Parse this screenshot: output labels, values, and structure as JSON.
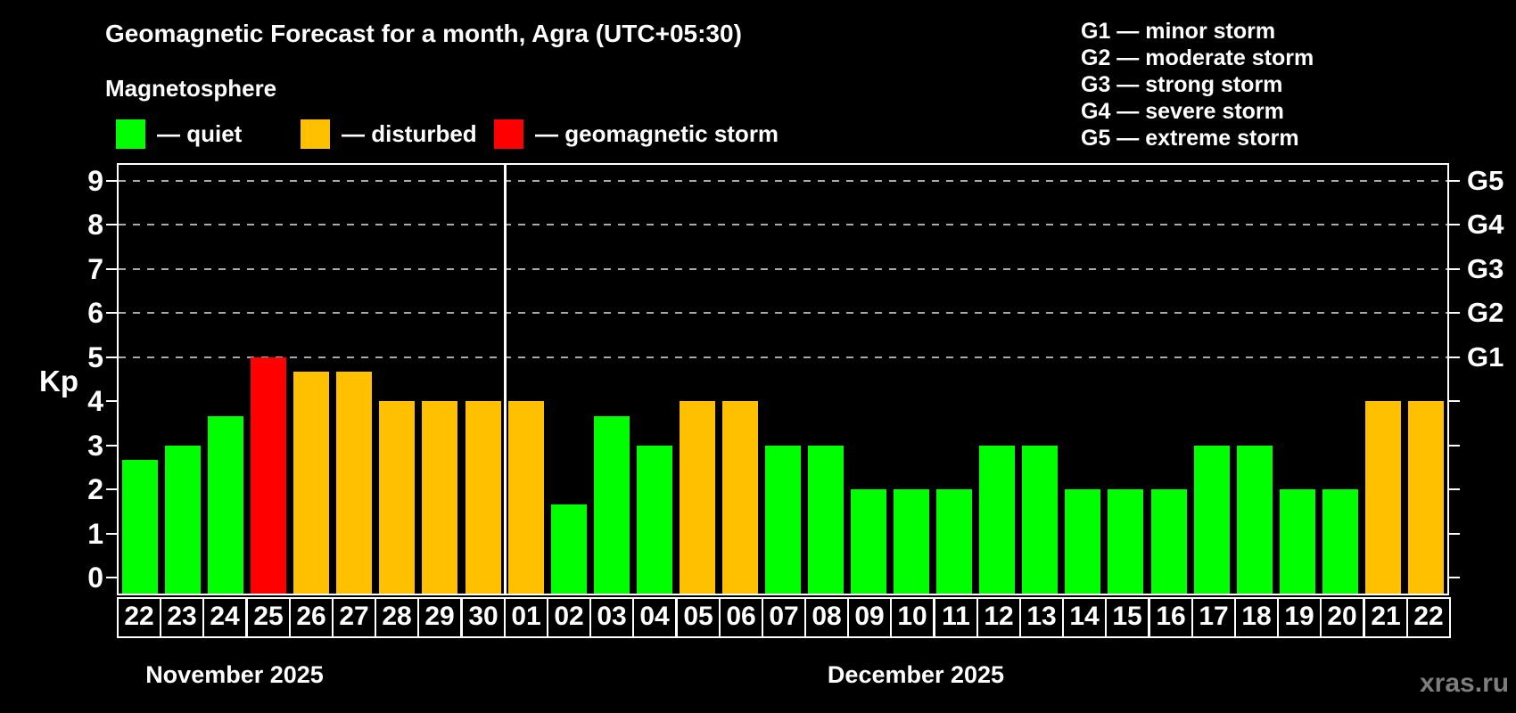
{
  "title": "Geomagnetic Forecast for a month, Agra (UTC+05:30)",
  "subtitle": "Magnetosphere",
  "legend": [
    {
      "key": "quiet",
      "label": "— quiet",
      "color": "#00ff00"
    },
    {
      "key": "disturbed",
      "label": "— disturbed",
      "color": "#ffc000"
    },
    {
      "key": "storm",
      "label": "— geomagnetic storm",
      "color": "#ff0000"
    }
  ],
  "storm_scale_legend": [
    "G1 — minor storm",
    "G2 — moderate storm",
    "G3 — strong storm",
    "G4 — severe storm",
    "G5 — extreme storm"
  ],
  "watermark": "xras.ru",
  "colors": {
    "quiet": "#00ff00",
    "disturbed": "#ffc000",
    "storm": "#ff0000",
    "background": "#000000",
    "grid": "#aaaaaa",
    "axis": "#ffffff",
    "watermark": "#7d7d7d"
  },
  "chart_data": {
    "type": "bar",
    "title": "Geomagnetic Forecast for a month, Agra (UTC+05:30)",
    "ylabel": "Kp",
    "ylim": [
      0,
      9
    ],
    "y_ticks": [
      0,
      1,
      2,
      3,
      4,
      5,
      6,
      7,
      8,
      9
    ],
    "gridline_values": [
      5,
      6,
      7,
      8,
      9
    ],
    "right_axis_labels": [
      {
        "value": 5,
        "label": "G1"
      },
      {
        "value": 6,
        "label": "G2"
      },
      {
        "value": 7,
        "label": "G3"
      },
      {
        "value": 8,
        "label": "G4"
      },
      {
        "value": 9,
        "label": "G5"
      }
    ],
    "months": [
      {
        "label": "November 2025",
        "days": 9
      },
      {
        "label": "December 2025",
        "days": 22
      }
    ],
    "categories": [
      "22",
      "23",
      "24",
      "25",
      "26",
      "27",
      "28",
      "29",
      "30",
      "01",
      "02",
      "03",
      "04",
      "05",
      "06",
      "07",
      "08",
      "09",
      "10",
      "11",
      "12",
      "13",
      "14",
      "15",
      "16",
      "17",
      "18",
      "19",
      "20",
      "21",
      "22"
    ],
    "values": [
      2.67,
      3,
      3.67,
      5,
      4.67,
      4.67,
      4,
      4,
      4,
      4,
      1.67,
      3.67,
      3,
      4,
      4,
      3,
      3,
      2,
      2,
      2,
      3,
      3,
      2,
      2,
      2,
      3,
      3,
      2,
      2,
      4,
      4
    ],
    "statuses": [
      "quiet",
      "quiet",
      "quiet",
      "storm",
      "disturbed",
      "disturbed",
      "disturbed",
      "disturbed",
      "disturbed",
      "disturbed",
      "quiet",
      "quiet",
      "quiet",
      "disturbed",
      "disturbed",
      "quiet",
      "quiet",
      "quiet",
      "quiet",
      "quiet",
      "quiet",
      "quiet",
      "quiet",
      "quiet",
      "quiet",
      "quiet",
      "quiet",
      "quiet",
      "quiet",
      "disturbed",
      "disturbed"
    ],
    "legend_position": "top",
    "grid": "dashed horizontal at G-levels only"
  }
}
